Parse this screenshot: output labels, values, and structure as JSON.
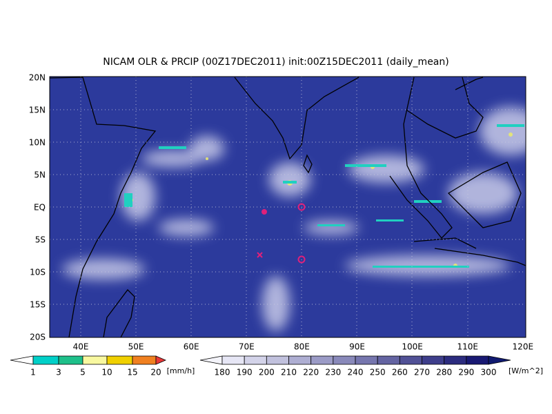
{
  "title": "NICAM OLR & PRCIP (00Z17DEC2011) init:00Z15DEC2011 (daily_mean)",
  "lat_labels": [
    "20N",
    "15N",
    "10N",
    "5N",
    "EQ",
    "5S",
    "10S",
    "15S",
    "20S"
  ],
  "lon_labels": [
    "40E",
    "50E",
    "60E",
    "70E",
    "80E",
    "90E",
    "100E",
    "110E",
    "120E"
  ],
  "precip_colorbar": {
    "labels": [
      "1",
      "3",
      "5",
      "10",
      "15",
      "20"
    ],
    "unit": "[mm/h]"
  },
  "olr_colorbar": {
    "labels": [
      "180",
      "190",
      "200",
      "210",
      "220",
      "230",
      "240",
      "250",
      "260",
      "270",
      "280",
      "290",
      "300"
    ],
    "unit": "[W/m^2]"
  }
}
